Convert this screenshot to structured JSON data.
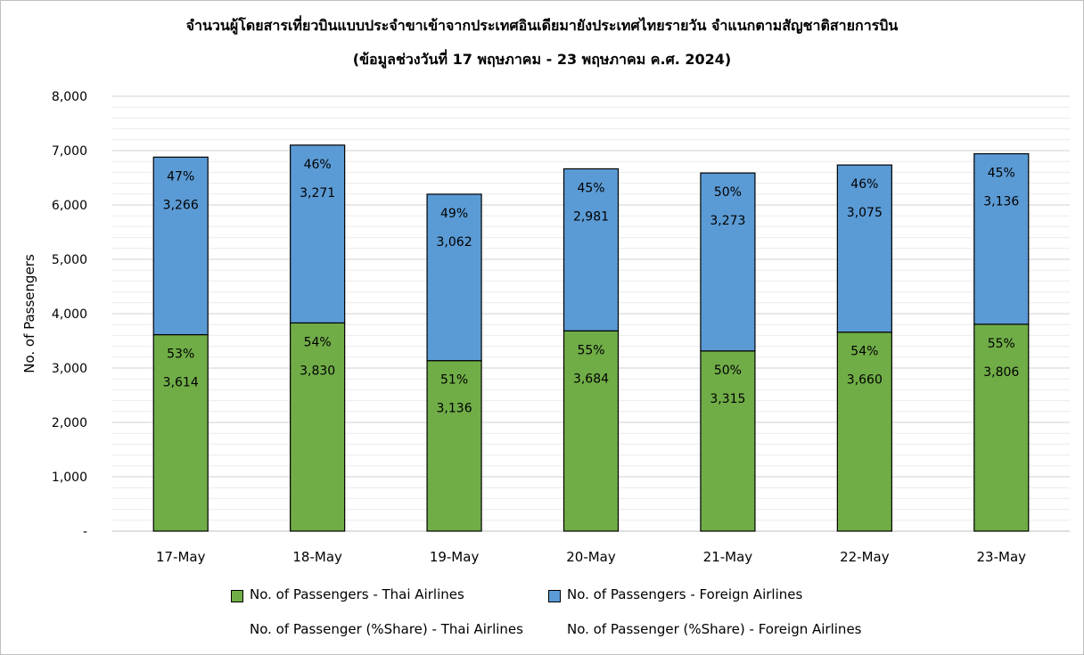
{
  "chart_data": {
    "type": "bar",
    "stacked": true,
    "title": "จำนวนผู้โดยสารเที่ยวบินแบบประจำขาเข้าจากประเทศอินเดียมายังประเทศไทยรายวัน  จำแนกตามสัญชาติสายการบิน",
    "subtitle": "(ข้อมูลช่วงวันที่ 17 พฤษภาคม - 23 พฤษภาคม ค.ศ. 2024)",
    "xlabel": "",
    "ylabel": "No. of Passengers",
    "ylim": [
      0,
      8000
    ],
    "yticks": [
      0,
      1000,
      2000,
      3000,
      4000,
      5000,
      6000,
      7000,
      8000
    ],
    "ytick_labels": [
      "-",
      "1,000",
      "2,000",
      "3,000",
      "4,000",
      "5,000",
      "6,000",
      "7,000",
      "8,000"
    ],
    "grid": true,
    "legend_position": "bottom",
    "categories": [
      "17-May",
      "18-May",
      "19-May",
      "20-May",
      "21-May",
      "22-May",
      "23-May"
    ],
    "series": [
      {
        "name": "No. of Passengers - Thai Airlines",
        "color": "#70ad47",
        "values": [
          3614,
          3830,
          3136,
          3684,
          3315,
          3660,
          3806
        ],
        "value_labels": [
          "3,614",
          "3,830",
          "3,136",
          "3,684",
          "3,315",
          "3,660",
          "3,806"
        ],
        "share_labels": [
          "53%",
          "54%",
          "51%",
          "55%",
          "50%",
          "54%",
          "55%"
        ]
      },
      {
        "name": "No. of Passengers - Foreign Airlines",
        "color": "#5b9bd5",
        "values": [
          3266,
          3271,
          3062,
          2981,
          3273,
          3075,
          3136
        ],
        "value_labels": [
          "3,266",
          "3,271",
          "3,062",
          "2,981",
          "3,273",
          "3,075",
          "3,136"
        ],
        "share_labels": [
          "47%",
          "46%",
          "49%",
          "45%",
          "50%",
          "46%",
          "45%"
        ]
      }
    ],
    "share_legend": [
      "No. of Passenger (%Share) - Thai Airlines",
      "No. of Passenger (%Share) - Foreign Airlines"
    ]
  }
}
